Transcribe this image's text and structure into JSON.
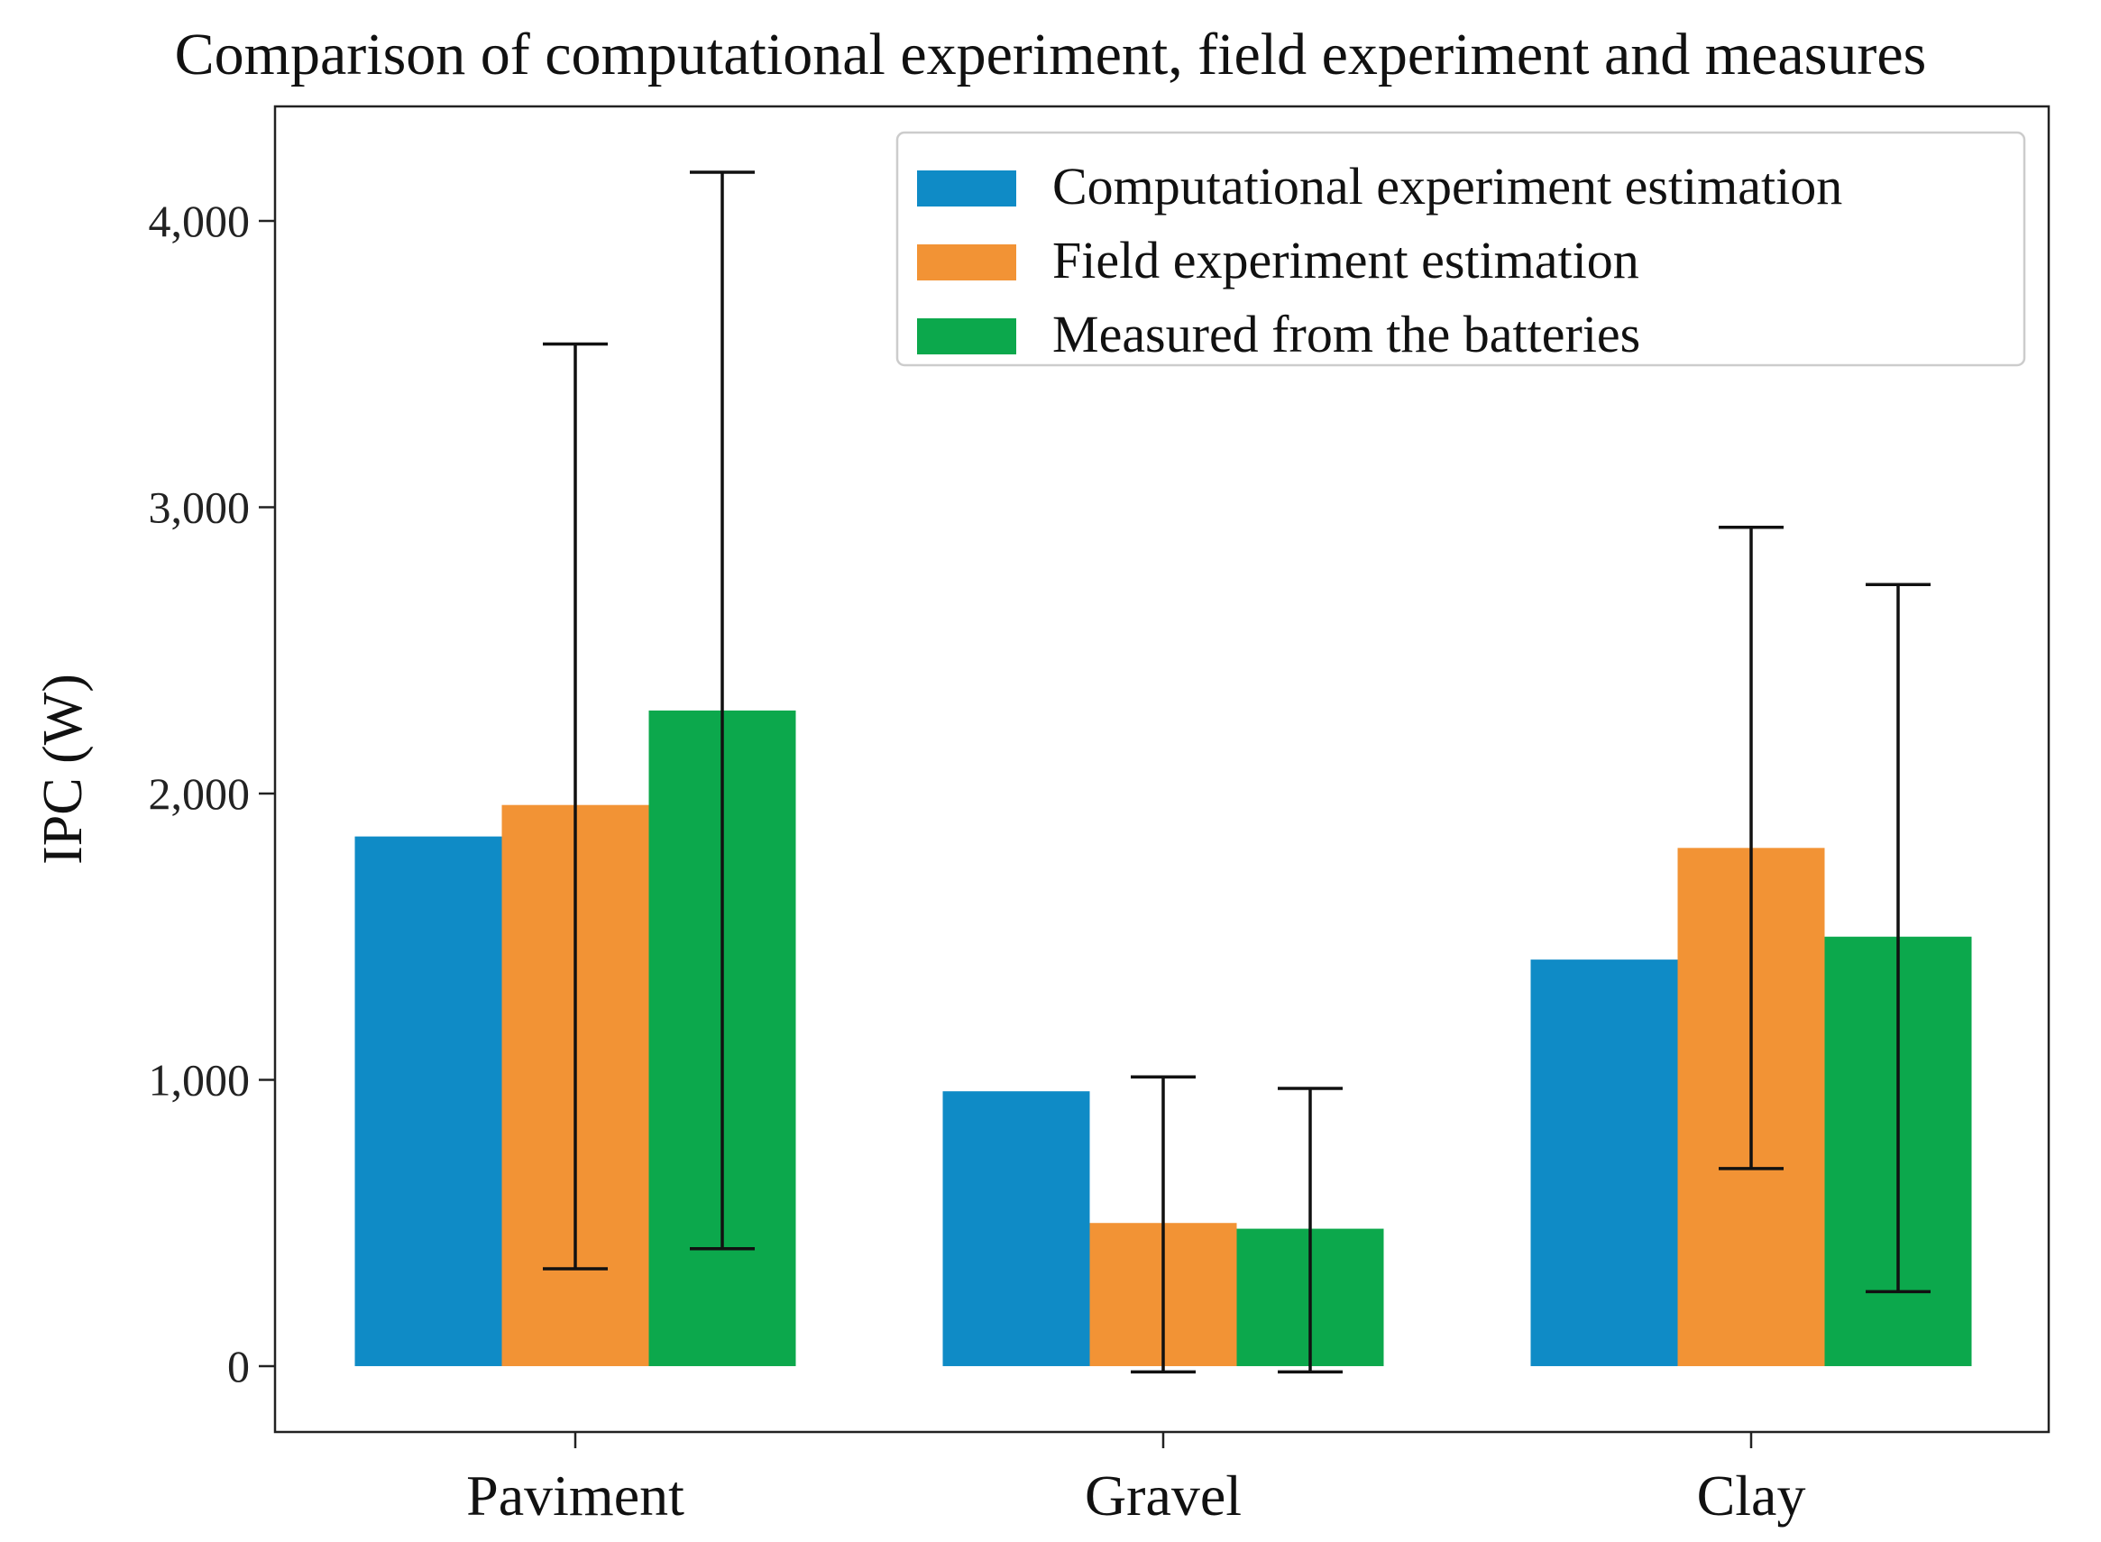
{
  "chart_data": {
    "type": "bar",
    "title": "Comparison of computational experiment, field experiment and measures",
    "xlabel": "",
    "ylabel": "IPC (W)",
    "categories": [
      "Paviment",
      "Gravel",
      "Clay"
    ],
    "ylim": [
      -230,
      4400
    ],
    "yticks": [
      0,
      1000,
      2000,
      3000,
      4000
    ],
    "ytick_labels": [
      "0",
      "1,000",
      "2,000",
      "3,000",
      "4,000"
    ],
    "grid": false,
    "legend_position": "top-right",
    "series": [
      {
        "name": "Computational experiment estimation",
        "color": "#0f8bc6",
        "values": [
          1850,
          960,
          1420
        ],
        "errors": null
      },
      {
        "name": "Field experiment estimation",
        "color": "#f29335",
        "values": [
          1960,
          500,
          1810
        ],
        "errors": [
          [
            340,
            3570
          ],
          [
            -20,
            1010
          ],
          [
            690,
            2930
          ]
        ]
      },
      {
        "name": "Measured from the batteries",
        "color": "#0ca84c",
        "values": [
          2290,
          480,
          1500
        ],
        "errors": [
          [
            410,
            4170
          ],
          [
            -20,
            970
          ],
          [
            260,
            2730
          ]
        ]
      }
    ]
  }
}
